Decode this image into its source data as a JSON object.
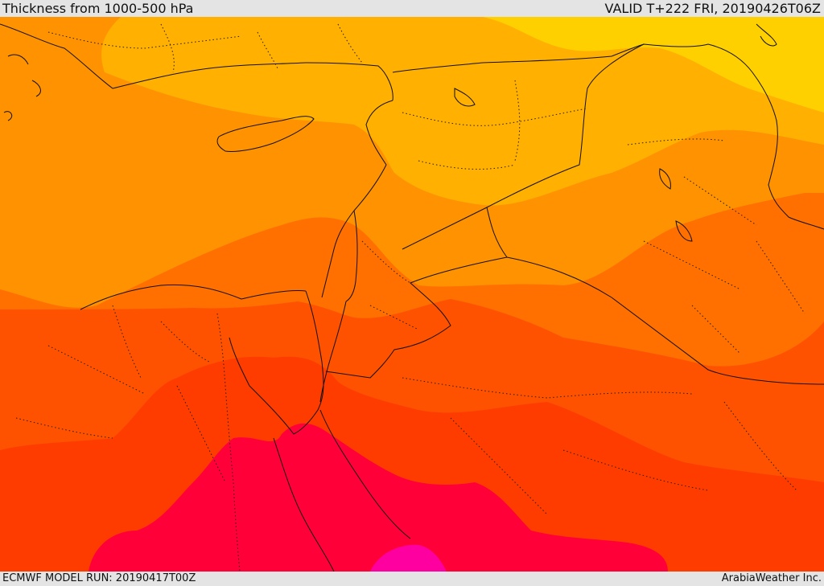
{
  "header": {
    "title": "Thickness from 1000-500 hPa",
    "valid_time": "VALID T+222 FRI, 20190426T06Z"
  },
  "footer": {
    "model_run": "ECMWF MODEL RUN: 20190417T00Z",
    "credit": "ArabiaWeather Inc."
  },
  "map": {
    "field": "1000-500 hPa thickness",
    "color_bands": [
      "#ffff00",
      "#ffd000",
      "#ffb000",
      "#ff9200",
      "#ff7000",
      "#ff5200",
      "#ff3c00",
      "#ff0038",
      "#ff00a0"
    ],
    "boundary_color": "#111111",
    "internal_boundary_style": "dotted"
  }
}
